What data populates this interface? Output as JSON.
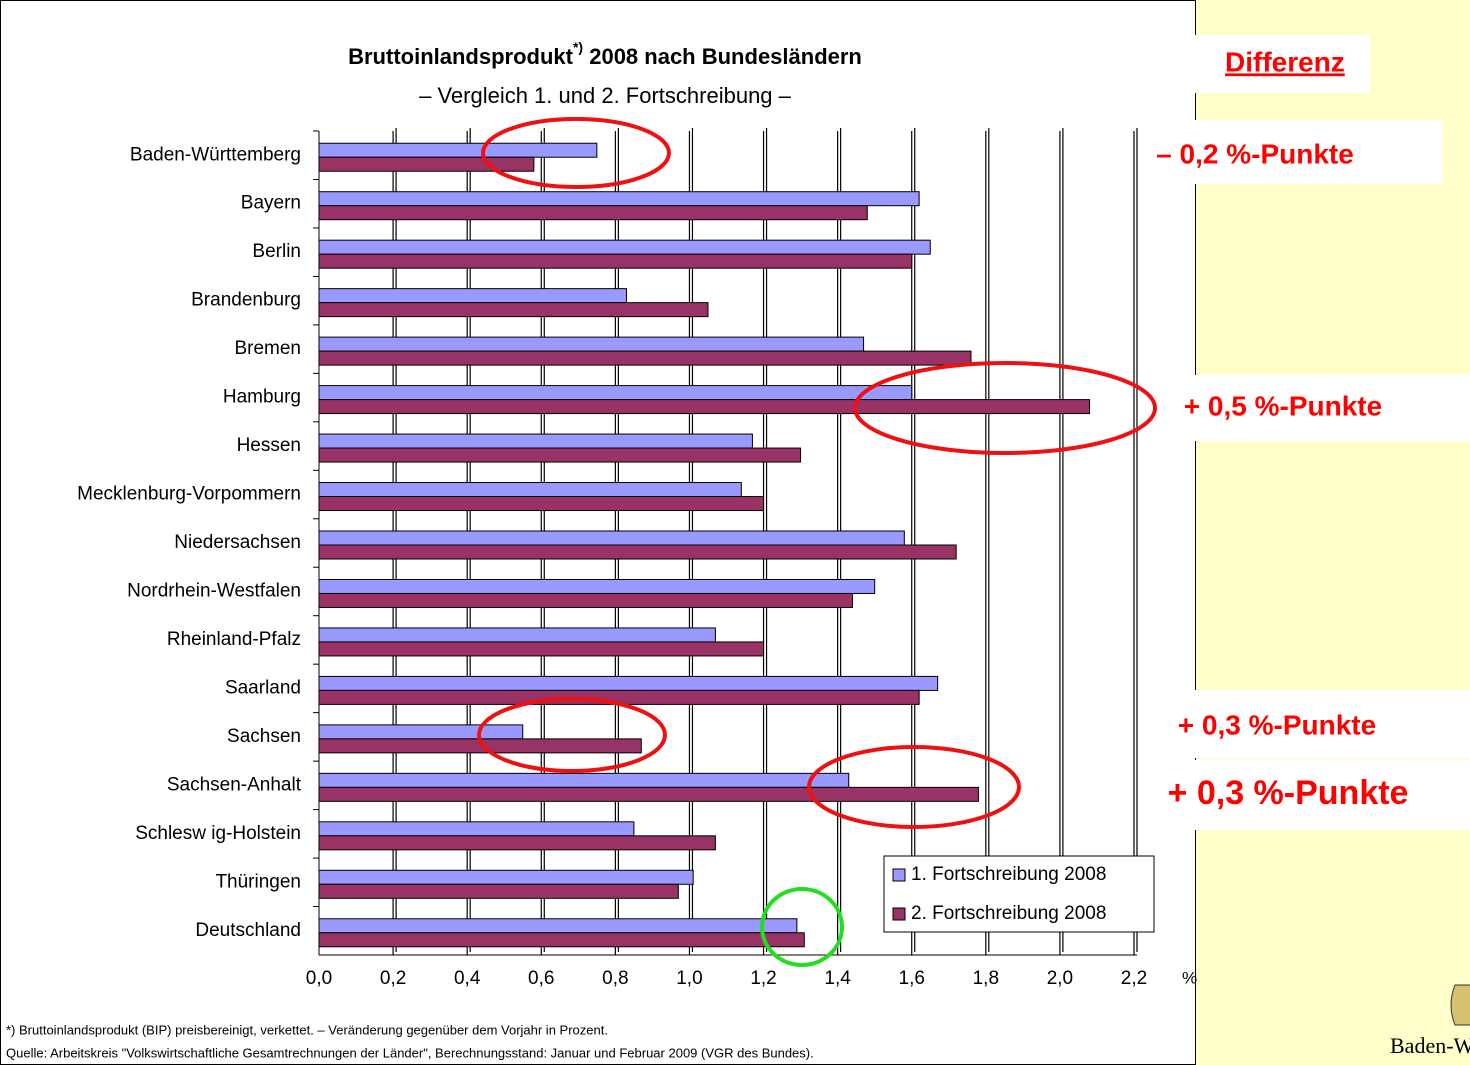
{
  "chart_data": {
    "type": "hbar",
    "title": [
      "Bruttoinlandsprodukt",
      "*)",
      " 2008 nach Bundesländern"
    ],
    "subtitle": "– Vergleich 1. und 2. Fortschreibung –",
    "categories": [
      "Baden-Württemberg",
      "Bayern",
      "Berlin",
      "Brandenburg",
      "Bremen",
      "Hamburg",
      "Hessen",
      "Mecklenburg-Vorpommern",
      "Niedersachsen",
      "Nordrhein-Westfalen",
      "Rheinland-Pfalz",
      "Saarland",
      "Sachsen",
      "Sachsen-Anhalt",
      "Schlesw ig-Holstein",
      "Thüringen",
      "Deutschland"
    ],
    "series": [
      {
        "name": "1. Fortschreibung 2008",
        "color": "#9999ff",
        "values": [
          0.75,
          1.62,
          1.65,
          0.83,
          1.47,
          1.6,
          1.17,
          1.14,
          1.58,
          1.5,
          1.07,
          1.67,
          0.55,
          1.43,
          0.85,
          1.01,
          1.29
        ]
      },
      {
        "name": "2. Fortschreibung 2008",
        "color": "#993366",
        "values": [
          0.58,
          1.48,
          1.6,
          1.05,
          1.76,
          2.08,
          1.3,
          1.2,
          1.72,
          1.44,
          1.2,
          1.62,
          0.87,
          1.78,
          1.07,
          0.97,
          1.31
        ]
      }
    ],
    "xlim": [
      0,
      2.2
    ],
    "xticks": [
      {
        "value": 0,
        "label": "0,0"
      },
      {
        "value": 0.2,
        "label": "0,2"
      },
      {
        "value": 0.4,
        "label": "0,4"
      },
      {
        "value": 0.6,
        "label": "0,6"
      },
      {
        "value": 0.8,
        "label": "0,8"
      },
      {
        "value": 1.0,
        "label": "1,0"
      },
      {
        "value": 1.2,
        "label": "1,2"
      },
      {
        "value": 1.4,
        "label": "1,4"
      },
      {
        "value": 1.6,
        "label": "1,6"
      },
      {
        "value": 1.8,
        "label": "1,8"
      },
      {
        "value": 2.0,
        "label": "2,0"
      },
      {
        "value": 2.2,
        "label": "2,2"
      }
    ],
    "x_unit": "%",
    "grid": true,
    "legend": "lower right",
    "annotations": [
      "Differenz",
      "– 0,2 %-Punkte",
      "+ 0,5 %-Punkte",
      "+ 0,3 %-Punkte",
      "+ 0,3 %-Punkte"
    ],
    "footnotes": [
      "*) Bruttoinlandsprodukt (BIP) preisbereinigt, verkettet. – Veränderung gegenüber dem Vorjahr in Prozent.",
      "Quelle: Arbeitskreis \"Volkswirtschaftliche Gesamtrechnungen der Länder\", Berechnungsstand: Januar und Februar 2009 (VGR des Bundes)."
    ],
    "logo_text": "Baden-Wü"
  }
}
